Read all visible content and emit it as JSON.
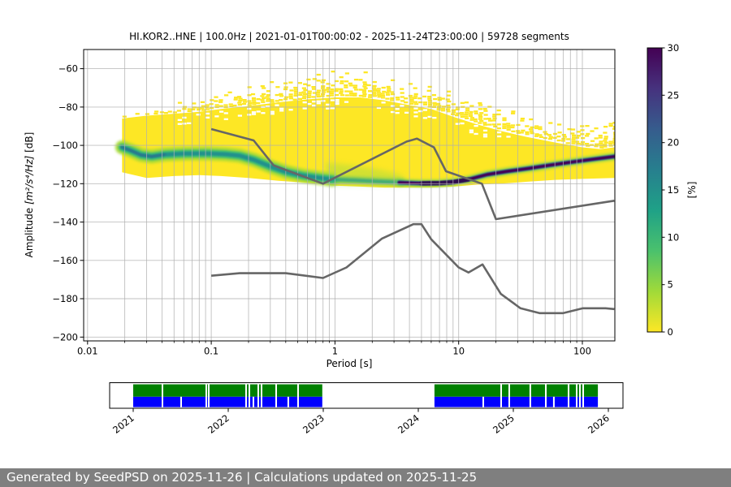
{
  "title": "HI.KOR2..HNE | 100.0Hz | 2021-01-01T00:00:02 - 2025-11-24T23:00:00 | 59728 segments",
  "footer": {
    "text": "Generated by SeedPSD on 2025-11-26 | Calculations updated on 2025-11-25",
    "bg_color": "#7f7f7f"
  },
  "chart_data": {
    "type": "heatmap",
    "title": "HI.KOR2..HNE | 100.0Hz | 2021-01-01T00:00:02 - 2025-11-24T23:00:00 | 59728 segments",
    "xlabel": "Period [s]",
    "ylabel": "Amplitude [m²/s⁴/Hz] [dB]",
    "ylabel_parts": {
      "prefix": "Amplitude ",
      "math": "[m²/s⁴/Hz]",
      "suffix": " [dB]"
    },
    "xscale": "log",
    "xlim": [
      0.0093,
      183
    ],
    "ylim": [
      -202,
      -50
    ],
    "x_ticks": [
      0.01,
      0.1,
      1,
      10,
      100
    ],
    "x_tick_labels": [
      "0.01",
      "0.1",
      "1",
      "10",
      "100"
    ],
    "y_ticks": [
      -60,
      -80,
      -100,
      -120,
      -140,
      -160,
      -180,
      -200
    ],
    "y_tick_labels": [
      "−60",
      "−80",
      "−100",
      "−120",
      "−140",
      "−160",
      "−180",
      "−200"
    ],
    "grid": true,
    "grid_color": "#b0b0b0",
    "colormap": "viridis_r",
    "colorbar": {
      "label": "[%]",
      "min": 0,
      "max": 30,
      "ticks": [
        0,
        5,
        10,
        15,
        20,
        25,
        30
      ],
      "tick_labels": [
        "0",
        "5",
        "10",
        "15",
        "20",
        "25",
        "30"
      ],
      "stops_top_to_bottom": [
        "#440154",
        "#46327e",
        "#365c8d",
        "#277f8e",
        "#1fa187",
        "#4ac16d",
        "#a0da39",
        "#fde725"
      ]
    },
    "density_envelopes": {
      "comment": "PPSD probability cloud: period [s] vs amplitude [dB]; speckle_top = sparse upper extent, solid_top = dense yellow upper edge, bottom = lower edge",
      "periods": [
        0.019,
        0.03,
        0.05,
        0.08,
        0.12,
        0.2,
        0.35,
        0.6,
        1.0,
        1.6,
        2.5,
        4,
        6,
        9,
        14,
        22,
        35,
        60,
        100,
        140,
        181
      ],
      "speckle_top": [
        -84.5,
        -82,
        -78,
        -73,
        -70.5,
        -68,
        -64.5,
        -62,
        -60.8,
        -61.2,
        -63.5,
        -67.5,
        -68,
        -70,
        -74,
        -79,
        -83.5,
        -86.5,
        -87.5,
        -86,
        -84.5
      ],
      "solid_top": [
        -86,
        -84.5,
        -83.5,
        -82.5,
        -81,
        -79.5,
        -77.5,
        -76,
        -75,
        -75,
        -76.5,
        -79,
        -81,
        -85,
        -89,
        -92.5,
        -95.5,
        -98.5,
        -101,
        -102,
        -101
      ],
      "bottom": [
        -114,
        -117,
        -116,
        -115.5,
        -116,
        -117,
        -118.5,
        -119.5,
        -121,
        -121.5,
        -122,
        -122,
        -122,
        -121.5,
        -120.5,
        -120,
        -119,
        -118,
        -117.5,
        -117.2,
        -117
      ],
      "fill_color": "#fde725"
    },
    "high_density_band": {
      "comment": "mode (highest probability) ridge of the PPSD, [period s, dB]",
      "left_teal": [
        [
          0.019,
          -101
        ],
        [
          0.022,
          -102.5
        ],
        [
          0.027,
          -105
        ],
        [
          0.033,
          -105.8
        ],
        [
          0.042,
          -104.8
        ],
        [
          0.06,
          -104.3
        ],
        [
          0.09,
          -104.2
        ],
        [
          0.13,
          -104.6
        ],
        [
          0.17,
          -105.4
        ],
        [
          0.22,
          -107.5
        ],
        [
          0.3,
          -111
        ],
        [
          0.4,
          -113.8
        ],
        [
          0.55,
          -115.8
        ],
        [
          0.75,
          -117
        ],
        [
          0.95,
          -117.8
        ]
      ],
      "mid_green": [
        [
          0.95,
          -117.8
        ],
        [
          1.5,
          -118.3
        ],
        [
          2.2,
          -118.8
        ],
        [
          3.0,
          -119.2
        ],
        [
          3.5,
          -119.4
        ]
      ],
      "dark_purple": [
        [
          3.3,
          -119.4
        ],
        [
          5,
          -119.8
        ],
        [
          7,
          -119.7
        ],
        [
          9,
          -119.2
        ],
        [
          12,
          -117.8
        ],
        [
          17,
          -115.2
        ],
        [
          25,
          -113.5
        ],
        [
          37,
          -112
        ],
        [
          55,
          -110.3
        ],
        [
          80,
          -108.8
        ],
        [
          120,
          -107.3
        ],
        [
          181,
          -105.8
        ]
      ]
    },
    "noise_models": {
      "color": "#666666",
      "nhnm": [
        [
          0.1,
          -91.5
        ],
        [
          0.22,
          -97.4
        ],
        [
          0.32,
          -110.5
        ],
        [
          0.8,
          -120.0
        ],
        [
          3.8,
          -98.0
        ],
        [
          4.6,
          -96.5
        ],
        [
          6.3,
          -101.0
        ],
        [
          7.9,
          -113.5
        ],
        [
          15.4,
          -120.0
        ],
        [
          20,
          -138.5
        ],
        [
          181,
          -128.9
        ]
      ],
      "nlnm": [
        [
          0.1,
          -168.0
        ],
        [
          0.17,
          -166.7
        ],
        [
          0.4,
          -166.7
        ],
        [
          0.8,
          -169.2
        ],
        [
          1.24,
          -163.7
        ],
        [
          2.4,
          -148.6
        ],
        [
          4.3,
          -141.1
        ],
        [
          5.0,
          -141.1
        ],
        [
          6.0,
          -149.0
        ],
        [
          10,
          -163.7
        ],
        [
          12,
          -166.3
        ],
        [
          15.6,
          -162.1
        ],
        [
          21.9,
          -177.5
        ],
        [
          31.6,
          -185.0
        ],
        [
          45,
          -187.5
        ],
        [
          70,
          -187.5
        ],
        [
          101,
          -185.0
        ],
        [
          154,
          -185.0
        ],
        [
          181,
          -185.4
        ]
      ]
    }
  },
  "timeline": {
    "comment": "data availability bar; green = PSD coverage, blue = waveform coverage; units in decimal years",
    "axis_range": [
      2020.752,
      2026.154
    ],
    "tick_years": [
      2021,
      2022,
      2023,
      2024,
      2025,
      2026
    ],
    "tick_labels": [
      "2021",
      "2022",
      "2023",
      "2024",
      "2025",
      "2026"
    ],
    "green_color": "#008000",
    "blue_color": "#0000ff",
    "blocks": [
      [
        2021.0,
        2022.99
      ],
      [
        2024.17,
        2025.89
      ]
    ],
    "gaps_both": [
      2021.308,
      2021.769,
      2021.795,
      2022.188,
      2022.222,
      2022.316,
      2022.35,
      2022.504,
      2022.735,
      2024.872,
      2024.957,
      2025.179,
      2025.342,
      2025.581,
      2025.667,
      2025.701,
      2025.735
    ],
    "gaps_blue": [
      2021.504,
      2022.265,
      2022.632,
      2024.684,
      2025.427
    ]
  }
}
